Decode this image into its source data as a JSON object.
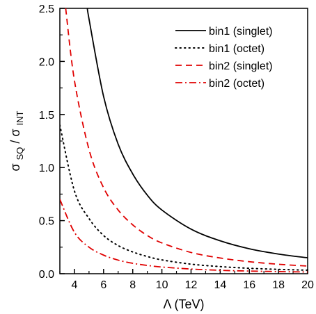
{
  "chart_data": {
    "type": "line",
    "xlabel": "Λ (TeV)",
    "ylabel": "σSQ/σINT",
    "ylabel_parts": {
      "sym1": "σ",
      "sub1": "SQ",
      "slash": "/",
      "sym2": "σ",
      "sub2": "INT"
    },
    "xlim": [
      3,
      20
    ],
    "ylim": [
      0,
      2.5
    ],
    "x_ticks": [
      4,
      6,
      8,
      10,
      12,
      14,
      16,
      18,
      20
    ],
    "y_ticks": [
      0.0,
      0.5,
      1.0,
      1.5,
      2.0,
      2.5
    ],
    "legend_position": "top-right",
    "grid": false,
    "series": [
      {
        "name": "bin1 (singlet)",
        "color": "#000000",
        "dash": "solid",
        "x": [
          4.9,
          5,
          6,
          7,
          8,
          9,
          10,
          12,
          14,
          16,
          18,
          20
        ],
        "y": [
          2.5,
          2.4,
          1.67,
          1.22,
          0.94,
          0.74,
          0.6,
          0.42,
          0.31,
          0.235,
          0.185,
          0.15
        ]
      },
      {
        "name": "bin1 (octet)",
        "color": "#000000",
        "dash": "dot",
        "x": [
          3,
          4,
          5,
          6,
          7,
          8,
          9,
          10,
          12,
          14,
          16,
          18,
          20
        ],
        "y": [
          1.4,
          0.78,
          0.52,
          0.36,
          0.265,
          0.205,
          0.162,
          0.13,
          0.09,
          0.067,
          0.051,
          0.041,
          0.033
        ]
      },
      {
        "name": "bin2 (singlet)",
        "color": "#e00000",
        "dash": "dash",
        "x": [
          3.4,
          4,
          5,
          6,
          7,
          8,
          9,
          10,
          12,
          14,
          16,
          18,
          20
        ],
        "y": [
          2.5,
          1.82,
          1.17,
          0.81,
          0.6,
          0.46,
          0.36,
          0.29,
          0.2,
          0.148,
          0.113,
          0.089,
          0.072
        ]
      },
      {
        "name": "bin2 (octet)",
        "color": "#e00000",
        "dash": "dashdot",
        "x": [
          3,
          4,
          5,
          6,
          7,
          8,
          9,
          10,
          12,
          14,
          16,
          18,
          20
        ],
        "y": [
          0.7,
          0.39,
          0.25,
          0.175,
          0.128,
          0.098,
          0.078,
          0.063,
          0.044,
          0.032,
          0.025,
          0.02,
          0.016
        ]
      }
    ]
  }
}
